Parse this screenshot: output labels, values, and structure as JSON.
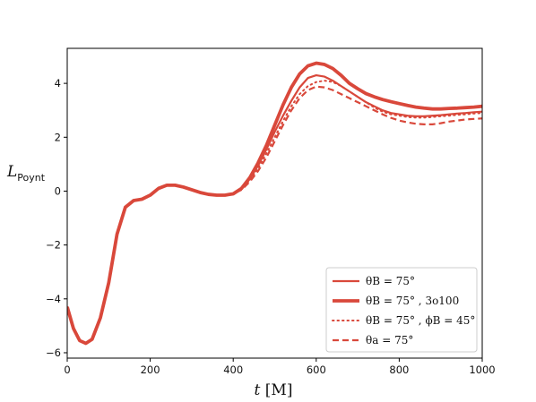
{
  "chart_data": {
    "type": "line",
    "xlabel": "t [M]",
    "ylabel": "L_Poynt",
    "xlim": [
      0,
      1000
    ],
    "ylim": [
      -6.2,
      5.3
    ],
    "x_ticks": [
      0,
      200,
      400,
      600,
      800,
      1000
    ],
    "y_ticks": [
      -6,
      -4,
      -2,
      0,
      2,
      4
    ],
    "x_tick_labels": [
      "0",
      "200",
      "400",
      "600",
      "800",
      "1000"
    ],
    "y_tick_labels": [
      "−6",
      "−4",
      "−2",
      "0",
      "2",
      "4"
    ],
    "grid": false,
    "legend_position": "lower-right",
    "line_color": "#d9483b",
    "series": [
      {
        "name": "θB = 75°",
        "style": "solid",
        "x": [
          0,
          15,
          30,
          45,
          60,
          80,
          100,
          120,
          140,
          160,
          180,
          200,
          220,
          240,
          260,
          280,
          300,
          320,
          340,
          360,
          380,
          400,
          420,
          440,
          460,
          480,
          500,
          520,
          540,
          560,
          580,
          600,
          620,
          640,
          660,
          680,
          700,
          720,
          740,
          760,
          780,
          800,
          820,
          840,
          860,
          880,
          900,
          920,
          940,
          960,
          980,
          1000
        ],
        "y": [
          -4.3,
          -5.1,
          -5.55,
          -5.65,
          -5.5,
          -4.7,
          -3.4,
          -1.6,
          -0.6,
          -0.35,
          -0.3,
          -0.15,
          0.1,
          0.22,
          0.22,
          0.15,
          0.05,
          -0.05,
          -0.12,
          -0.15,
          -0.15,
          -0.1,
          0.1,
          0.45,
          0.95,
          1.55,
          2.2,
          2.8,
          3.35,
          3.85,
          4.2,
          4.3,
          4.25,
          4.1,
          3.9,
          3.7,
          3.5,
          3.3,
          3.15,
          3.0,
          2.9,
          2.85,
          2.8,
          2.78,
          2.78,
          2.8,
          2.82,
          2.85,
          2.88,
          2.9,
          2.93,
          2.95
        ]
      },
      {
        "name": "θB = 75° , 3o100",
        "style": "thick",
        "x": [
          0,
          15,
          30,
          45,
          60,
          80,
          100,
          120,
          140,
          160,
          180,
          200,
          220,
          240,
          260,
          280,
          300,
          320,
          340,
          360,
          380,
          400,
          420,
          440,
          460,
          480,
          500,
          520,
          540,
          560,
          580,
          600,
          620,
          640,
          660,
          680,
          700,
          720,
          740,
          760,
          780,
          800,
          820,
          840,
          860,
          880,
          900,
          920,
          940,
          960,
          980,
          1000
        ],
        "y": [
          -4.3,
          -5.1,
          -5.55,
          -5.65,
          -5.5,
          -4.7,
          -3.4,
          -1.6,
          -0.6,
          -0.35,
          -0.3,
          -0.15,
          0.1,
          0.22,
          0.22,
          0.15,
          0.05,
          -0.05,
          -0.12,
          -0.15,
          -0.15,
          -0.1,
          0.1,
          0.5,
          1.05,
          1.7,
          2.45,
          3.2,
          3.85,
          4.35,
          4.65,
          4.75,
          4.7,
          4.55,
          4.3,
          4.0,
          3.8,
          3.62,
          3.5,
          3.4,
          3.32,
          3.25,
          3.18,
          3.12,
          3.08,
          3.05,
          3.05,
          3.07,
          3.08,
          3.1,
          3.12,
          3.15
        ]
      },
      {
        "name": "θB = 75° , ϕB = 45°",
        "style": "dotted",
        "x": [
          0,
          15,
          30,
          45,
          60,
          80,
          100,
          120,
          140,
          160,
          180,
          200,
          220,
          240,
          260,
          280,
          300,
          320,
          340,
          360,
          380,
          400,
          420,
          440,
          460,
          480,
          500,
          520,
          540,
          560,
          580,
          600,
          620,
          640,
          660,
          680,
          700,
          720,
          740,
          760,
          780,
          800,
          820,
          840,
          860,
          880,
          900,
          920,
          940,
          960,
          980,
          1000
        ],
        "y": [
          -4.3,
          -5.1,
          -5.55,
          -5.65,
          -5.5,
          -4.7,
          -3.4,
          -1.6,
          -0.6,
          -0.35,
          -0.3,
          -0.15,
          0.1,
          0.22,
          0.22,
          0.15,
          0.05,
          -0.05,
          -0.12,
          -0.15,
          -0.15,
          -0.1,
          0.08,
          0.4,
          0.85,
          1.4,
          2.0,
          2.6,
          3.15,
          3.6,
          3.9,
          4.05,
          4.1,
          4.05,
          3.9,
          3.7,
          3.5,
          3.3,
          3.1,
          2.95,
          2.85,
          2.8,
          2.75,
          2.73,
          2.73,
          2.75,
          2.78,
          2.8,
          2.83,
          2.85,
          2.88,
          2.9
        ]
      },
      {
        "name": "θa = 75°",
        "style": "dashed",
        "x": [
          0,
          15,
          30,
          45,
          60,
          80,
          100,
          120,
          140,
          160,
          180,
          200,
          220,
          240,
          260,
          280,
          300,
          320,
          340,
          360,
          380,
          400,
          420,
          440,
          460,
          480,
          500,
          520,
          540,
          560,
          580,
          600,
          620,
          640,
          660,
          680,
          700,
          720,
          740,
          760,
          780,
          800,
          820,
          840,
          860,
          880,
          900,
          920,
          940,
          960,
          980,
          1000
        ],
        "y": [
          -4.3,
          -5.1,
          -5.55,
          -5.65,
          -5.5,
          -4.7,
          -3.4,
          -1.6,
          -0.6,
          -0.35,
          -0.3,
          -0.15,
          0.1,
          0.22,
          0.22,
          0.15,
          0.05,
          -0.05,
          -0.12,
          -0.15,
          -0.15,
          -0.1,
          0.05,
          0.35,
          0.75,
          1.25,
          1.85,
          2.45,
          3.0,
          3.45,
          3.75,
          3.88,
          3.85,
          3.75,
          3.6,
          3.45,
          3.3,
          3.15,
          3.0,
          2.85,
          2.72,
          2.62,
          2.55,
          2.5,
          2.48,
          2.48,
          2.52,
          2.58,
          2.62,
          2.66,
          2.68,
          2.7
        ]
      }
    ]
  }
}
